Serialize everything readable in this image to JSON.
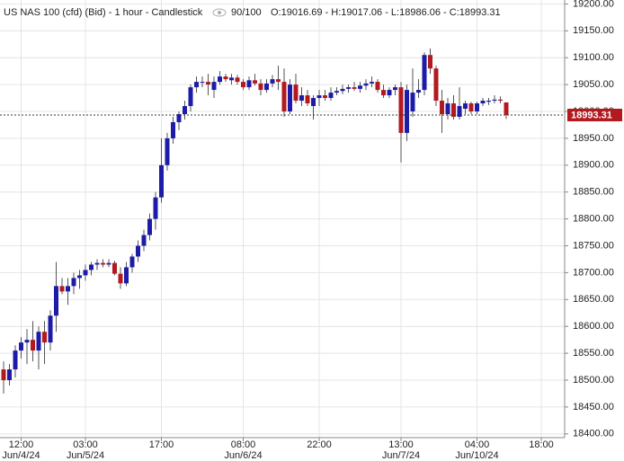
{
  "chart_data": {
    "type": "candlestick",
    "title": "US NAS 100 (cfd) (Bid) - 1 hour - Candlestick",
    "zoom": "90/100",
    "ohlc_text": "O:19016.69 - H:19017.06 - L:18986.06 - C:18993.31",
    "categories": [
      null,
      null,
      null,
      "12:00",
      null,
      null,
      null,
      null,
      null,
      null,
      null,
      null,
      null,
      null,
      "03:00",
      null,
      null,
      null,
      null,
      null,
      null,
      null,
      null,
      null,
      null,
      null,
      null,
      "17:00",
      null,
      null,
      null,
      null,
      null,
      null,
      null,
      null,
      null,
      null,
      null,
      null,
      null,
      "08:00",
      null,
      null,
      null,
      null,
      null,
      null,
      null,
      null,
      null,
      null,
      null,
      null,
      "22:00",
      null,
      null,
      null,
      null,
      null,
      null,
      null,
      null,
      null,
      null,
      null,
      null,
      null,
      "13:00",
      null,
      null,
      null,
      null,
      null,
      null,
      null,
      null,
      null,
      null,
      null,
      null,
      "04:00",
      null,
      null,
      null,
      null,
      null,
      null,
      null,
      null,
      null,
      null,
      "18:00"
    ],
    "dates": [
      null,
      null,
      null,
      "Jun/4/24",
      null,
      null,
      null,
      null,
      null,
      null,
      null,
      null,
      null,
      null,
      "Jun/5/24",
      null,
      null,
      null,
      null,
      null,
      null,
      null,
      null,
      null,
      null,
      null,
      null,
      null,
      null,
      null,
      null,
      null,
      null,
      null,
      null,
      null,
      null,
      null,
      null,
      null,
      null,
      "Jun/6/24",
      null,
      null,
      null,
      null,
      null,
      null,
      null,
      null,
      null,
      null,
      null,
      null,
      null,
      null,
      null,
      null,
      null,
      null,
      null,
      null,
      null,
      null,
      null,
      null,
      null,
      null,
      "Jun/7/24",
      null,
      null,
      null,
      null,
      null,
      null,
      null,
      null,
      null,
      null,
      null,
      null,
      "Jun/10/24",
      null,
      null,
      null,
      null,
      null,
      null,
      null,
      null,
      null,
      null,
      null
    ],
    "open": [
      18520,
      18500,
      18520,
      18555,
      18570,
      18575,
      18555,
      18590,
      18570,
      18620,
      18675,
      18665,
      18675,
      18690,
      18695,
      18705,
      18715,
      18718,
      18715,
      18718,
      18698,
      18680,
      18710,
      18730,
      18750,
      18770,
      18800,
      18840,
      18900,
      18950,
      18980,
      18995,
      19010,
      19045,
      19055,
      19055,
      19040,
      19055,
      19065,
      19058,
      19063,
      19055,
      19045,
      19058,
      19052,
      19040,
      19052,
      19060,
      19055,
      19000,
      19050,
      19020,
      19030,
      19010,
      19025,
      19030,
      19025,
      19035,
      19038,
      19042,
      19045,
      19042,
      19048,
      19052,
      19055,
      19040,
      19030,
      19040,
      19045,
      18960,
      19000,
      19035,
      19040,
      19105,
      19080,
      19020,
      18995,
      19015,
      18990,
      19005,
      19015,
      19000,
      19015,
      19018,
      19020,
      19022,
      19016.69,
      null,
      null,
      null,
      null,
      null,
      null
    ],
    "high": [
      18535,
      18530,
      18565,
      18580,
      18595,
      18610,
      18600,
      18610,
      18630,
      18720,
      18690,
      18690,
      18700,
      18705,
      18715,
      18720,
      18725,
      18725,
      18725,
      18722,
      18710,
      18720,
      18735,
      18760,
      18780,
      18810,
      18850,
      18950,
      18960,
      18990,
      19000,
      19020,
      19050,
      19065,
      19065,
      19070,
      19065,
      19075,
      19070,
      19070,
      19068,
      19060,
      19065,
      19070,
      19060,
      19060,
      19068,
      19085,
      19080,
      19060,
      19070,
      19045,
      19040,
      19030,
      19040,
      19040,
      19045,
      19045,
      19050,
      19050,
      19055,
      19055,
      19060,
      19065,
      19060,
      19050,
      19045,
      19050,
      19055,
      19050,
      19080,
      19060,
      19110,
      19117,
      19085,
      19040,
      19025,
      19030,
      19045,
      19020,
      19018,
      19018,
      19025,
      19025,
      19030,
      19028,
      19017.06,
      null,
      null,
      null,
      null,
      null,
      null
    ],
    "low": [
      18475,
      18490,
      18505,
      18540,
      18530,
      18535,
      18520,
      18530,
      18555,
      18590,
      18660,
      18640,
      18660,
      18670,
      18685,
      18695,
      18705,
      18710,
      18710,
      18695,
      18670,
      18675,
      18700,
      18720,
      18740,
      18760,
      18780,
      18830,
      18890,
      18940,
      18965,
      18985,
      19000,
      19035,
      19045,
      19030,
      19025,
      19050,
      19055,
      19050,
      19050,
      19040,
      19040,
      19048,
      19030,
      19035,
      19045,
      19040,
      18990,
      18995,
      19015,
      19010,
      19010,
      18985,
      19010,
      19020,
      19020,
      19030,
      19032,
      19035,
      19038,
      19035,
      19040,
      19045,
      19035,
      19025,
      19025,
      19030,
      18905,
      18945,
      18990,
      19025,
      19030,
      19070,
      19010,
      18960,
      18985,
      18985,
      18985,
      18995,
      18995,
      18995,
      19010,
      19012,
      19015,
      19015,
      18986.06,
      null,
      null,
      null,
      null,
      null,
      null
    ],
    "close": [
      18500,
      18520,
      18555,
      18570,
      18575,
      18555,
      18590,
      18570,
      18620,
      18675,
      18665,
      18675,
      18690,
      18695,
      18705,
      18715,
      18718,
      18715,
      18718,
      18698,
      18680,
      18710,
      18730,
      18750,
      18770,
      18800,
      18840,
      18900,
      18950,
      18980,
      18995,
      19010,
      19045,
      19055,
      19055,
      19050,
      19055,
      19065,
      19060,
      19063,
      19055,
      19045,
      19058,
      19052,
      19040,
      19052,
      19060,
      19055,
      19000,
      19050,
      19020,
      19030,
      19015,
      19025,
      19030,
      19025,
      19035,
      19038,
      19042,
      19045,
      19042,
      19048,
      19052,
      19055,
      19040,
      19030,
      19040,
      19045,
      18960,
      19040,
      19035,
      19040,
      19105,
      19080,
      19020,
      18995,
      19015,
      18990,
      19010,
      19015,
      19000,
      19015,
      19020,
      19020,
      19022,
      19020,
      18993.31,
      null,
      null,
      null,
      null,
      null,
      null
    ],
    "up_color": "#1c1ca8",
    "down_color": "#b3191e",
    "wick_color": "#555555",
    "last_price": {
      "value": 18993.31,
      "label": "18993.31"
    },
    "ylim": [
      18393,
      19203
    ],
    "yticks": [
      {
        "value": 18400,
        "label": "18400.00"
      },
      {
        "value": 18450,
        "label": "18450.00"
      },
      {
        "value": 18500,
        "label": "18500.00"
      },
      {
        "value": 18550,
        "label": "18550.00"
      },
      {
        "value": 18600,
        "label": "18600.00"
      },
      {
        "value": 18650,
        "label": "18650.00"
      },
      {
        "value": 18700,
        "label": "18700.00"
      },
      {
        "value": 18750,
        "label": "18750.00"
      },
      {
        "value": 18800,
        "label": "18800.00"
      },
      {
        "value": 18850,
        "label": "18850.00"
      },
      {
        "value": 18900,
        "label": "18900.00"
      },
      {
        "value": 18950,
        "label": "18950.00"
      },
      {
        "value": 19000,
        "label": "19000.00"
      },
      {
        "value": 19050,
        "label": "19050.00"
      },
      {
        "value": 19100,
        "label": "19100.00"
      },
      {
        "value": 19150,
        "label": "19150.00"
      },
      {
        "value": 19200,
        "label": "19200.00"
      }
    ],
    "grid": true
  }
}
